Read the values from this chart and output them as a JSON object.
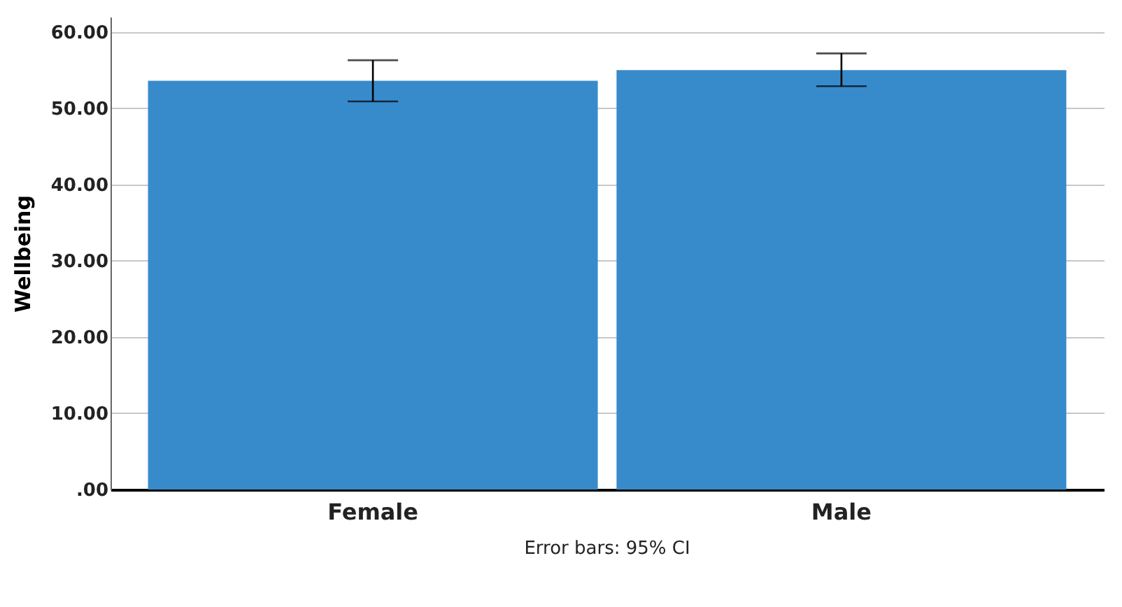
{
  "chart_data": {
    "type": "bar",
    "ylabel": "Wellbeing",
    "categories": [
      "Female",
      "Male"
    ],
    "values": [
      53.6,
      55.0
    ],
    "errors": [
      [
        50.9,
        56.3
      ],
      [
        52.9,
        57.2
      ]
    ],
    "color": "#388bcb",
    "ylim": [
      0,
      62
    ],
    "yticks": [
      {
        "value": 0,
        "label": ".00"
      },
      {
        "value": 10,
        "label": "10.00"
      },
      {
        "value": 20,
        "label": "20.00"
      },
      {
        "value": 30,
        "label": "30.00"
      },
      {
        "value": 40,
        "label": "40.00"
      },
      {
        "value": 50,
        "label": "50.00"
      },
      {
        "value": 60,
        "label": "60.00"
      }
    ],
    "grid": "y",
    "annotations": [
      "Error bars: 95% CI"
    ]
  }
}
